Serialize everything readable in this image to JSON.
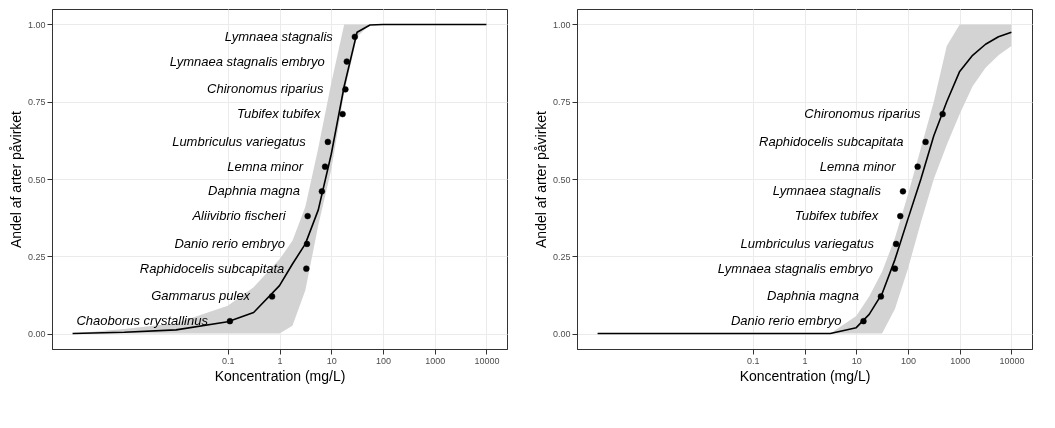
{
  "chart_data": [
    {
      "type": "scatter",
      "xlabel": "Koncentration (mg/L)",
      "ylabel": "Andel af arter påvirket",
      "log": "x",
      "grid": true,
      "xlim": [
        4e-05,
        25000
      ],
      "xticks": [
        0.1,
        1,
        10,
        100,
        1000,
        10000
      ],
      "ylim": [
        -0.05,
        1.05
      ],
      "yticks": [
        {
          "value": 0,
          "label": "0.00"
        },
        {
          "value": 0.25,
          "label": "0.25"
        },
        {
          "value": 0.5,
          "label": "0.50"
        },
        {
          "value": 0.75,
          "label": "0.75"
        },
        {
          "value": 1,
          "label": "1.00"
        }
      ],
      "series": [
        {
          "type": "scatter",
          "color": "#000000",
          "marker": "circle",
          "x": [
            0.11,
            0.72,
            3.3,
            3.4,
            3.5,
            6.6,
            7.6,
            8.6,
            16.6,
            18.8,
            20,
            28.6
          ],
          "values": [
            0.04,
            0.12,
            0.21,
            0.29,
            0.38,
            0.46,
            0.54,
            0.62,
            0.71,
            0.79,
            0.88,
            0.96
          ]
        },
        {
          "type": "line",
          "color": "#000000",
          "marker": "none",
          "x": [
            0.0001,
            0.001,
            0.01,
            0.1,
            0.316,
            1,
            1.78,
            3.16,
            5.62,
            10,
            17.8,
            31.6,
            56.2,
            100,
            1000,
            10000
          ],
          "values": [
            0,
            0.004,
            0.012,
            0.038,
            0.068,
            0.155,
            0.225,
            0.29,
            0.4,
            0.58,
            0.8,
            0.975,
            0.998,
            1,
            1,
            1
          ],
          "lower": [
            0,
            0,
            0,
            0,
            0,
            0,
            0.025,
            0.14,
            0.35,
            0.53,
            0.78,
            0.96,
            1,
            1,
            1,
            1
          ],
          "upper": [
            0,
            0.015,
            0.033,
            0.09,
            0.15,
            0.24,
            0.3,
            0.41,
            0.6,
            0.81,
            1,
            1,
            1,
            1,
            1,
            1
          ]
        }
      ],
      "annotations": [
        {
          "text": "Chaoborus crystallinus",
          "x": 0.11,
          "y": 0.04
        },
        {
          "text": "Gammarus pulex",
          "x": 0.72,
          "y": 0.12
        },
        {
          "text": "Raphidocelis subcapitata",
          "x": 3.3,
          "y": 0.21
        },
        {
          "text": "Danio rerio embryo",
          "x": 3.4,
          "y": 0.29
        },
        {
          "text": "Aliivibrio fischeri",
          "x": 3.5,
          "y": 0.38
        },
        {
          "text": "Daphnia magna",
          "x": 6.6,
          "y": 0.46
        },
        {
          "text": "Lemna minor",
          "x": 7.6,
          "y": 0.54
        },
        {
          "text": "Lumbriculus variegatus",
          "x": 8.6,
          "y": 0.62
        },
        {
          "text": "Tubifex tubifex",
          "x": 16.6,
          "y": 0.71
        },
        {
          "text": "Chironomus riparius",
          "x": 18.8,
          "y": 0.79
        },
        {
          "text": "Lymnaea stagnalis embryo",
          "x": 20,
          "y": 0.88
        },
        {
          "text": "Lymnaea stagnalis",
          "x": 28.6,
          "y": 0.96
        }
      ]
    },
    {
      "type": "scatter",
      "xlabel": "Koncentration (mg/L)",
      "ylabel": "Andel af arter påvirket",
      "log": "x",
      "grid": true,
      "xlim": [
        4e-05,
        25000
      ],
      "xticks": [
        0.1,
        1,
        10,
        100,
        1000,
        10000
      ],
      "ylim": [
        -0.05,
        1.05
      ],
      "yticks": [
        {
          "value": 0,
          "label": "0.00"
        },
        {
          "value": 0.25,
          "label": "0.25"
        },
        {
          "value": 0.5,
          "label": "0.50"
        },
        {
          "value": 0.75,
          "label": "0.75"
        },
        {
          "value": 1,
          "label": "1.00"
        }
      ],
      "series": [
        {
          "type": "scatter",
          "color": "#000000",
          "marker": "circle",
          "x": [
            13.8,
            30,
            56,
            59,
            71,
            80,
            154,
            219,
            468
          ],
          "values": [
            0.04,
            0.12,
            0.21,
            0.29,
            0.38,
            0.46,
            0.54,
            0.62,
            0.71
          ]
        },
        {
          "type": "line",
          "color": "#000000",
          "marker": "none",
          "x": [
            0.0001,
            0.01,
            1,
            3.16,
            10,
            17.8,
            31.6,
            56.2,
            100,
            178,
            316,
            562,
            1000,
            1778,
            3162,
            5623,
            10000
          ],
          "values": [
            0,
            0,
            0,
            0,
            0.019,
            0.062,
            0.129,
            0.24,
            0.371,
            0.5,
            0.64,
            0.75,
            0.848,
            0.9,
            0.936,
            0.96,
            0.975
          ],
          "lower": [
            0,
            0,
            0,
            0,
            0,
            0,
            0,
            0.08,
            0.21,
            0.36,
            0.5,
            0.61,
            0.71,
            0.8,
            0.86,
            0.9,
            0.93
          ],
          "upper": [
            0,
            0,
            0,
            0,
            0.057,
            0.12,
            0.2,
            0.31,
            0.45,
            0.6,
            0.75,
            0.93,
            1,
            1,
            1,
            1,
            1
          ]
        }
      ],
      "annotations": [
        {
          "text": "Danio rerio embryo",
          "x": 13.8,
          "y": 0.04
        },
        {
          "text": "Daphnia magna",
          "x": 30,
          "y": 0.12
        },
        {
          "text": "Lymnaea stagnalis embryo",
          "x": 56,
          "y": 0.21
        },
        {
          "text": "Lumbriculus variegatus",
          "x": 59,
          "y": 0.29
        },
        {
          "text": "Tubifex tubifex",
          "x": 71,
          "y": 0.38
        },
        {
          "text": "Lymnaea stagnalis",
          "x": 80,
          "y": 0.46
        },
        {
          "text": "Lemna minor",
          "x": 154,
          "y": 0.54
        },
        {
          "text": "Raphidocelis subcapitata",
          "x": 219,
          "y": 0.62
        },
        {
          "text": "Chironomus riparius",
          "x": 468,
          "y": 0.71
        }
      ]
    }
  ]
}
